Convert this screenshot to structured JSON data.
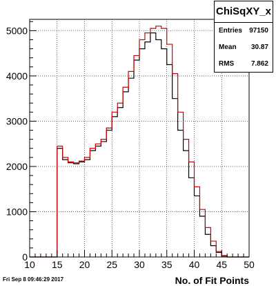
{
  "stats": {
    "title": "ChiSqXY_x",
    "rows": [
      {
        "label": "Entries",
        "value": "97150"
      },
      {
        "label": "Mean",
        "value": "30.87"
      },
      {
        "label": "RMS",
        "value": "7.862"
      }
    ]
  },
  "date": "Fri Sep  8 09:46:29 2017",
  "chart_data": {
    "type": "histogram",
    "xlabel": "No. of Fit Points",
    "ylabel": "",
    "xlim": [
      10,
      50
    ],
    "ylim": [
      0,
      5250
    ],
    "xticks": [
      10,
      15,
      20,
      25,
      30,
      35,
      40,
      45,
      50
    ],
    "yticks": [
      0,
      1000,
      2000,
      3000,
      4000,
      5000
    ],
    "grid": true,
    "bin_width": 1,
    "series": [
      {
        "color": "#000000",
        "bin_start": 15,
        "values": [
          2400,
          2150,
          2080,
          2060,
          2100,
          2150,
          2350,
          2450,
          2550,
          2800,
          3100,
          3300,
          3650,
          3950,
          4350,
          4600,
          4750,
          4950,
          4800,
          4600,
          4250,
          3500,
          2800,
          2350,
          1750,
          1350,
          900,
          500,
          250,
          100,
          20
        ]
      },
      {
        "color": "#cc0000",
        "bin_start": 15,
        "values": [
          2450,
          2200,
          2100,
          2080,
          2120,
          2200,
          2400,
          2500,
          2600,
          2850,
          3200,
          3400,
          3750,
          4100,
          4450,
          4800,
          4950,
          5050,
          5100,
          5050,
          4700,
          4050,
          3200,
          2600,
          2100,
          1550,
          1050,
          650,
          350,
          120,
          30
        ]
      }
    ]
  }
}
